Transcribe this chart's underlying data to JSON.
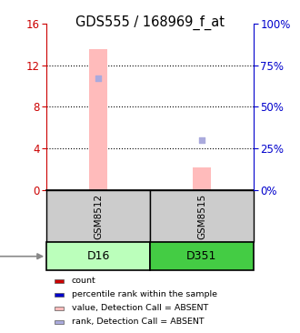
{
  "title": "GDS555 / 168969_f_at",
  "samples": [
    "GSM8512",
    "GSM8515"
  ],
  "cell_lines": [
    "D16",
    "D351"
  ],
  "cell_line_colors": [
    "#bbffbb",
    "#44cc44"
  ],
  "value_absent": [
    13.5,
    2.2
  ],
  "rank_absent": [
    10.7,
    4.85
  ],
  "rank_absent_pct": [
    67,
    30
  ],
  "ylim_left": [
    0,
    16
  ],
  "ylim_right": [
    0,
    100
  ],
  "yticks_left": [
    0,
    4,
    8,
    12,
    16
  ],
  "yticks_right": [
    0,
    25,
    50,
    75,
    100
  ],
  "absent_bar_color": "#ffbbbb",
  "absent_rank_color": "#aaaadd",
  "legend_items": [
    {
      "color": "#cc0000",
      "label": "count"
    },
    {
      "color": "#0000cc",
      "label": "percentile rank within the sample"
    },
    {
      "color": "#ffbbbb",
      "label": "value, Detection Call = ABSENT"
    },
    {
      "color": "#aaaadd",
      "label": "rank, Detection Call = ABSENT"
    }
  ],
  "left_axis_color": "#cc0000",
  "right_axis_color": "#0000cc",
  "sample_box_color": "#cccccc",
  "fig_width": 3.3,
  "fig_height": 3.66,
  "dpi": 100
}
